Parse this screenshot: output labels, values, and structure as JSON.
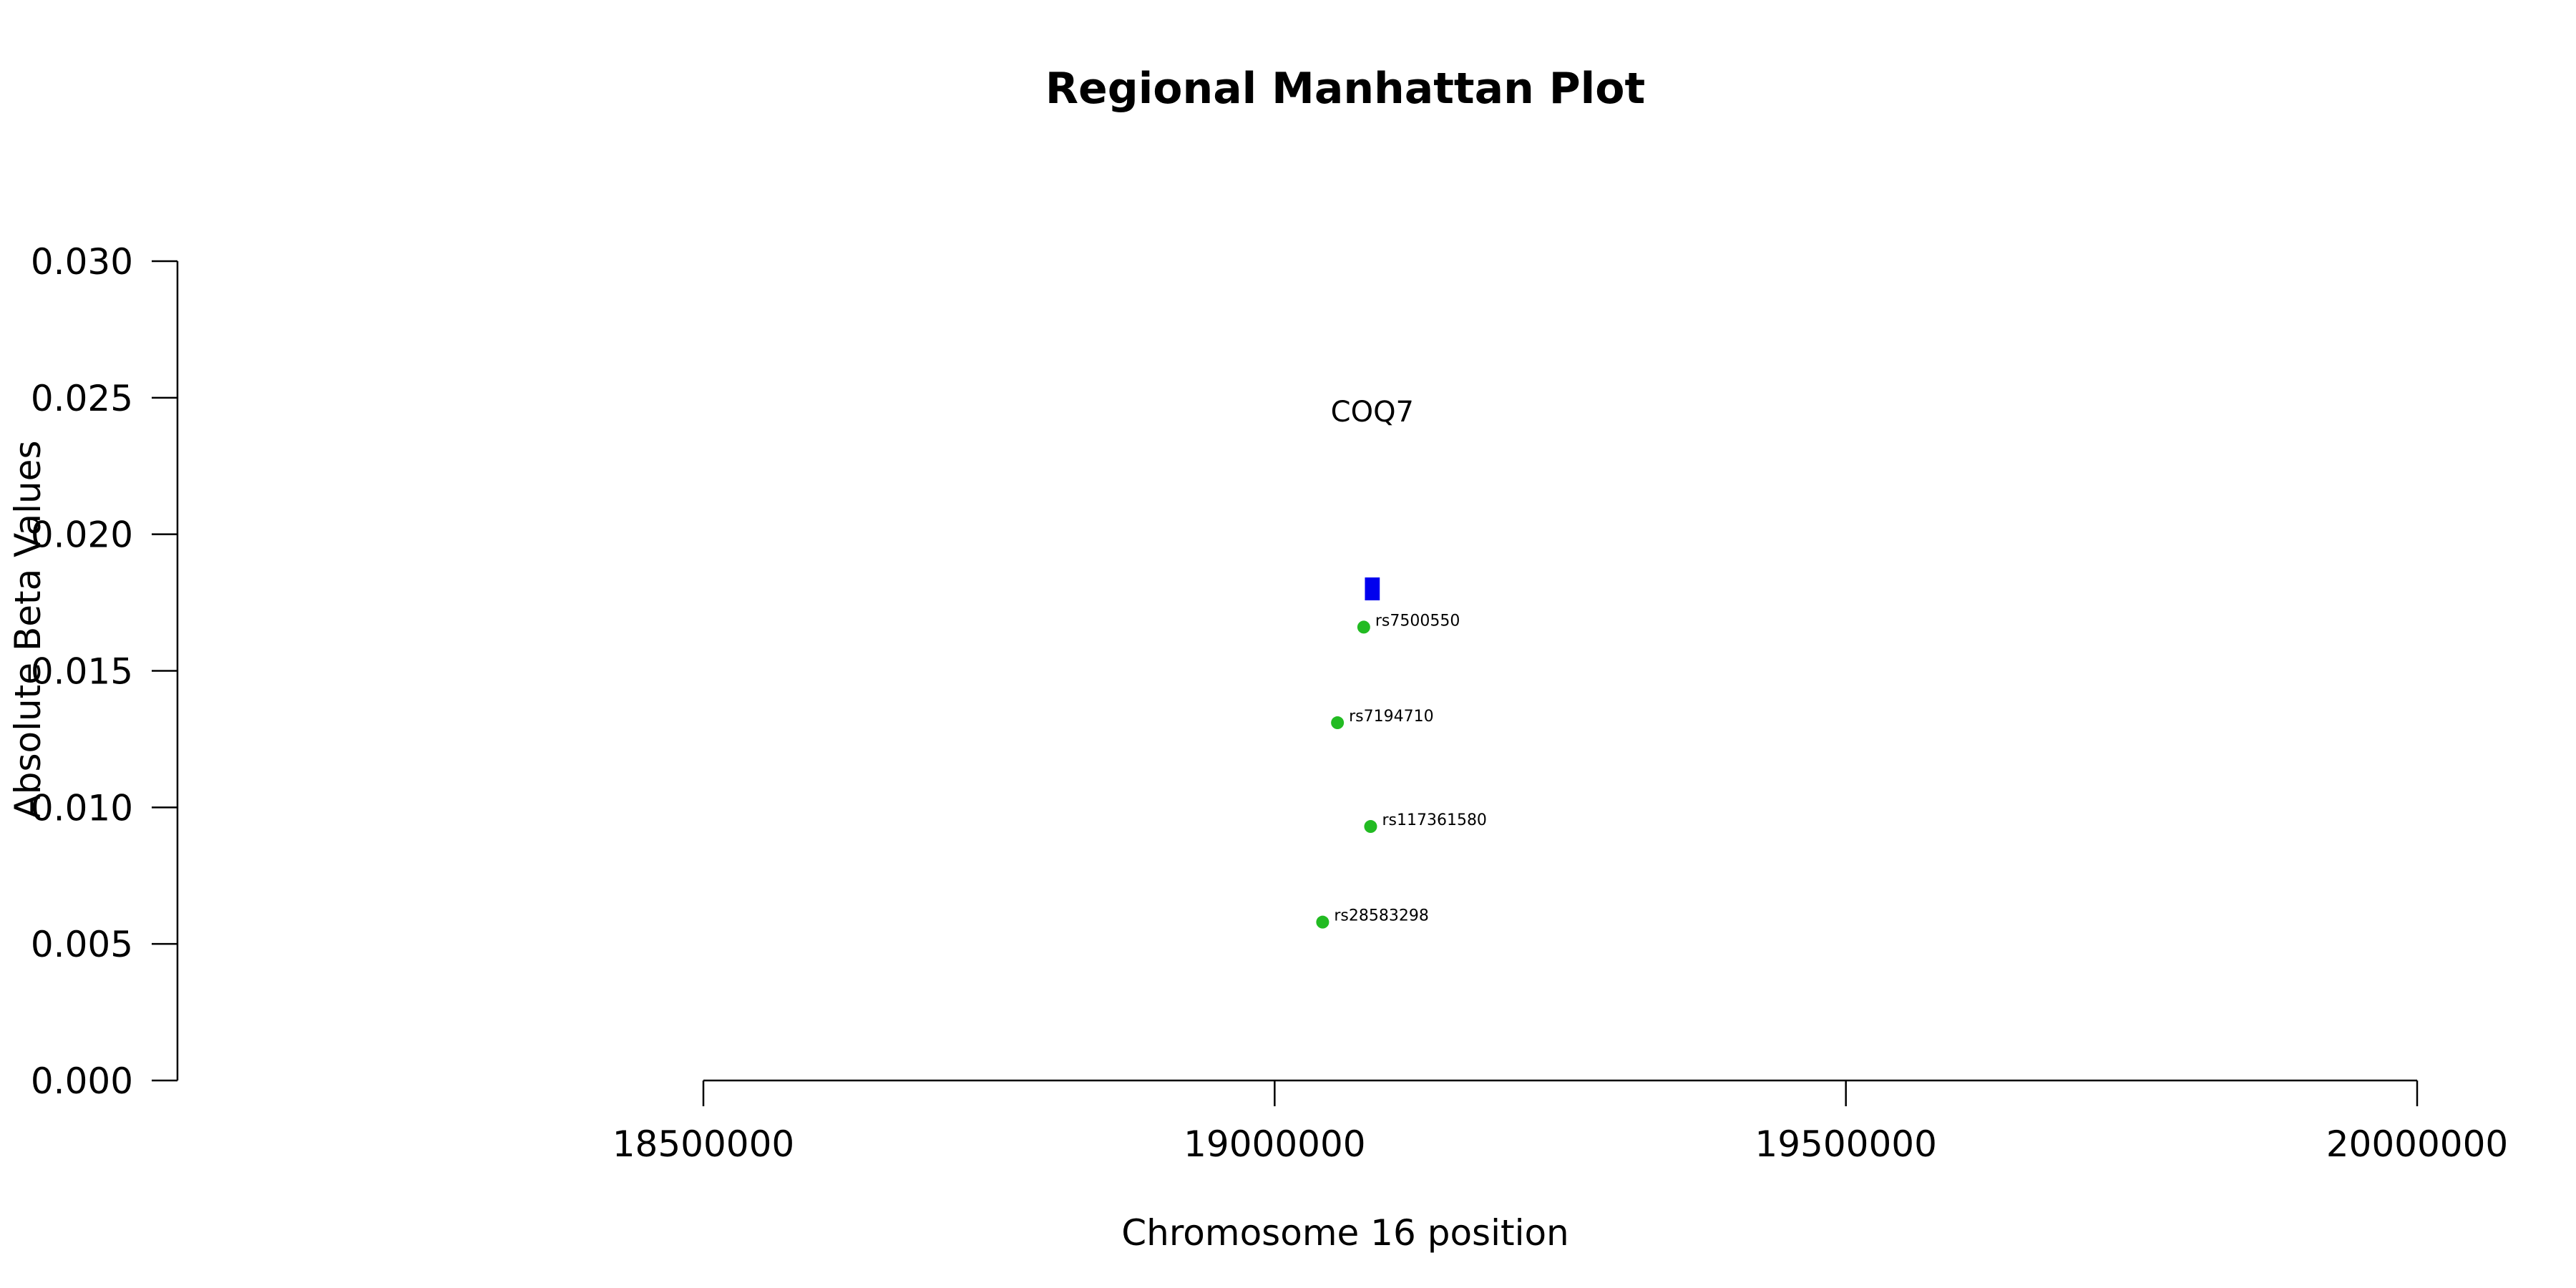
{
  "chart_data": {
    "type": "scatter",
    "title": "Regional Manhattan Plot",
    "xlabel": "Chromosome 16 position",
    "ylabel": "Absolute Beta Values",
    "xlim": [
      18500000,
      20000000
    ],
    "ylim": [
      0,
      0.03
    ],
    "x_ticks": [
      18500000,
      19000000,
      19500000,
      20000000
    ],
    "x_tick_labels": [
      "18500000",
      "19000000",
      "19500000",
      "20000000"
    ],
    "y_ticks": [
      0,
      0.005,
      0.01,
      0.015,
      0.02,
      0.025,
      0.03
    ],
    "y_tick_labels": [
      "0.000",
      "0.005",
      "0.010",
      "0.015",
      "0.020",
      "0.025",
      "0.030"
    ],
    "grid": false,
    "legend": "none",
    "point_color": "#22bb22",
    "gene_color": "#0000ee",
    "points": [
      {
        "label": "rs7500550",
        "x": 19078000,
        "y": 0.0166
      },
      {
        "label": "rs7194710",
        "x": 19055000,
        "y": 0.0131
      },
      {
        "label": "rs117361580",
        "x": 19084000,
        "y": 0.0093
      },
      {
        "label": "rs28583298",
        "x": 19042000,
        "y": 0.0058
      }
    ],
    "genes": [
      {
        "name": "COQ7",
        "start": 19079000,
        "end": 19092000,
        "y": 0.018,
        "label_y": 0.0245
      }
    ]
  }
}
